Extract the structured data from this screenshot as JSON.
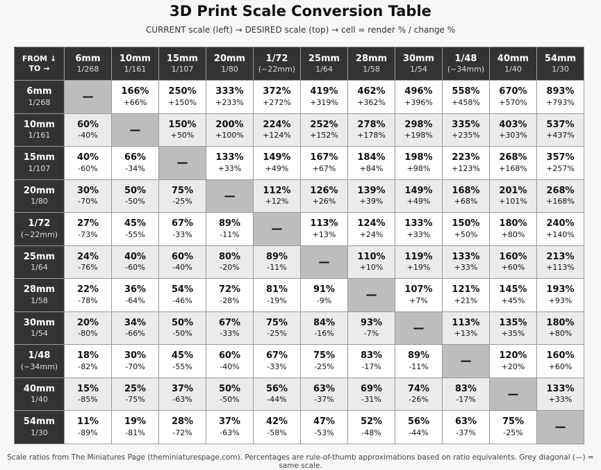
{
  "header": {
    "title": "3D Print Scale Conversion Table",
    "subtitle": "CURRENT scale (left) → DESIRED scale (top) → cell = render % / change %"
  },
  "table": {
    "corner": [
      "FROM ↓",
      "TO →"
    ],
    "columns": [
      [
        "6mm",
        "1/268"
      ],
      [
        "10mm",
        "1/161"
      ],
      [
        "15mm",
        "1/107"
      ],
      [
        "20mm",
        "1/80"
      ],
      [
        "1/72",
        "(~22mm)"
      ],
      [
        "25mm",
        "1/64"
      ],
      [
        "28mm",
        "1/58"
      ],
      [
        "30mm",
        "1/54"
      ],
      [
        "1/48",
        "(~34mm)"
      ],
      [
        "40mm",
        "1/40"
      ],
      [
        "54mm",
        "1/30"
      ]
    ],
    "rows": [
      {
        "name": [
          "6mm",
          "1/268"
        ],
        "cells": [
          [
            "—"
          ],
          [
            "166%",
            "+66%"
          ],
          [
            "250%",
            "+150%"
          ],
          [
            "333%",
            "+233%"
          ],
          [
            "372%",
            "+272%"
          ],
          [
            "419%",
            "+319%"
          ],
          [
            "462%",
            "+362%"
          ],
          [
            "496%",
            "+396%"
          ],
          [
            "558%",
            "+458%"
          ],
          [
            "670%",
            "+570%"
          ],
          [
            "893%",
            "+793%"
          ]
        ]
      },
      {
        "name": [
          "10mm",
          "1/161"
        ],
        "cells": [
          [
            "60%",
            "-40%"
          ],
          [
            "—"
          ],
          [
            "150%",
            "+50%"
          ],
          [
            "200%",
            "+100%"
          ],
          [
            "224%",
            "+124%"
          ],
          [
            "252%",
            "+152%"
          ],
          [
            "278%",
            "+178%"
          ],
          [
            "298%",
            "+198%"
          ],
          [
            "335%",
            "+235%"
          ],
          [
            "403%",
            "+303%"
          ],
          [
            "537%",
            "+437%"
          ]
        ]
      },
      {
        "name": [
          "15mm",
          "1/107"
        ],
        "cells": [
          [
            "40%",
            "-60%"
          ],
          [
            "66%",
            "-34%"
          ],
          [
            "—"
          ],
          [
            "133%",
            "+33%"
          ],
          [
            "149%",
            "+49%"
          ],
          [
            "167%",
            "+67%"
          ],
          [
            "184%",
            "+84%"
          ],
          [
            "198%",
            "+98%"
          ],
          [
            "223%",
            "+123%"
          ],
          [
            "268%",
            "+168%"
          ],
          [
            "357%",
            "+257%"
          ]
        ]
      },
      {
        "name": [
          "20mm",
          "1/80"
        ],
        "cells": [
          [
            "30%",
            "-70%"
          ],
          [
            "50%",
            "-50%"
          ],
          [
            "75%",
            "-25%"
          ],
          [
            "—"
          ],
          [
            "112%",
            "+12%"
          ],
          [
            "126%",
            "+26%"
          ],
          [
            "139%",
            "+39%"
          ],
          [
            "149%",
            "+49%"
          ],
          [
            "168%",
            "+68%"
          ],
          [
            "201%",
            "+101%"
          ],
          [
            "268%",
            "+168%"
          ]
        ]
      },
      {
        "name": [
          "1/72",
          "(~22mm)"
        ],
        "cells": [
          [
            "27%",
            "-73%"
          ],
          [
            "45%",
            "-55%"
          ],
          [
            "67%",
            "-33%"
          ],
          [
            "89%",
            "-11%"
          ],
          [
            "—"
          ],
          [
            "113%",
            "+13%"
          ],
          [
            "124%",
            "+24%"
          ],
          [
            "133%",
            "+33%"
          ],
          [
            "150%",
            "+50%"
          ],
          [
            "180%",
            "+80%"
          ],
          [
            "240%",
            "+140%"
          ]
        ]
      },
      {
        "name": [
          "25mm",
          "1/64"
        ],
        "cells": [
          [
            "24%",
            "-76%"
          ],
          [
            "40%",
            "-60%"
          ],
          [
            "60%",
            "-40%"
          ],
          [
            "80%",
            "-20%"
          ],
          [
            "89%",
            "-11%"
          ],
          [
            "—"
          ],
          [
            "110%",
            "+10%"
          ],
          [
            "119%",
            "+19%"
          ],
          [
            "133%",
            "+33%"
          ],
          [
            "160%",
            "+60%"
          ],
          [
            "213%",
            "+113%"
          ]
        ]
      },
      {
        "name": [
          "28mm",
          "1/58"
        ],
        "cells": [
          [
            "22%",
            "-78%"
          ],
          [
            "36%",
            "-64%"
          ],
          [
            "54%",
            "-46%"
          ],
          [
            "72%",
            "-28%"
          ],
          [
            "81%",
            "-19%"
          ],
          [
            "91%",
            "-9%"
          ],
          [
            "—"
          ],
          [
            "107%",
            "+7%"
          ],
          [
            "121%",
            "+21%"
          ],
          [
            "145%",
            "+45%"
          ],
          [
            "193%",
            "+93%"
          ]
        ]
      },
      {
        "name": [
          "30mm",
          "1/54"
        ],
        "cells": [
          [
            "20%",
            "-80%"
          ],
          [
            "34%",
            "-66%"
          ],
          [
            "50%",
            "-50%"
          ],
          [
            "67%",
            "-33%"
          ],
          [
            "75%",
            "-25%"
          ],
          [
            "84%",
            "-16%"
          ],
          [
            "93%",
            "-7%"
          ],
          [
            "—"
          ],
          [
            "113%",
            "+13%"
          ],
          [
            "135%",
            "+35%"
          ],
          [
            "180%",
            "+80%"
          ]
        ]
      },
      {
        "name": [
          "1/48",
          "(~34mm)"
        ],
        "cells": [
          [
            "18%",
            "-82%"
          ],
          [
            "30%",
            "-70%"
          ],
          [
            "45%",
            "-55%"
          ],
          [
            "60%",
            "-40%"
          ],
          [
            "67%",
            "-33%"
          ],
          [
            "75%",
            "-25%"
          ],
          [
            "83%",
            "-17%"
          ],
          [
            "89%",
            "-11%"
          ],
          [
            "—"
          ],
          [
            "120%",
            "+20%"
          ],
          [
            "160%",
            "+60%"
          ]
        ]
      },
      {
        "name": [
          "40mm",
          "1/40"
        ],
        "cells": [
          [
            "15%",
            "-85%"
          ],
          [
            "25%",
            "-75%"
          ],
          [
            "37%",
            "-63%"
          ],
          [
            "50%",
            "-50%"
          ],
          [
            "56%",
            "-44%"
          ],
          [
            "63%",
            "-37%"
          ],
          [
            "69%",
            "-31%"
          ],
          [
            "74%",
            "-26%"
          ],
          [
            "83%",
            "-17%"
          ],
          [
            "—"
          ],
          [
            "133%",
            "+33%"
          ]
        ]
      },
      {
        "name": [
          "54mm",
          "1/30"
        ],
        "cells": [
          [
            "11%",
            "-89%"
          ],
          [
            "19%",
            "-81%"
          ],
          [
            "28%",
            "-72%"
          ],
          [
            "37%",
            "-63%"
          ],
          [
            "42%",
            "-58%"
          ],
          [
            "47%",
            "-53%"
          ],
          [
            "52%",
            "-48%"
          ],
          [
            "56%",
            "-44%"
          ],
          [
            "63%",
            "-37%"
          ],
          [
            "75%",
            "-25%"
          ],
          [
            "—"
          ]
        ]
      }
    ]
  },
  "footer": {
    "note": "Scale ratios from The Miniatures Page (theminiaturespage.com). Percentages are rule-of-thumb approximations based on ratio equivalents. Grey diagonal (—) = same scale."
  }
}
